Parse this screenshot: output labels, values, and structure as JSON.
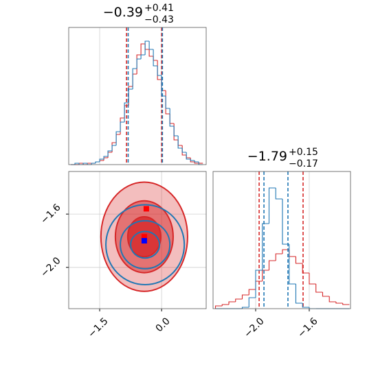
{
  "chart_data": [
    {
      "type": "histogram",
      "title": "−0.39",
      "title_sup": "+0.41",
      "title_sub": "−0.43",
      "xlim": [
        -2.25,
        1.08
      ],
      "ylim": [
        0,
        100
      ],
      "xticks": [
        -1.5,
        0
      ],
      "tick_labels": false,
      "grid": true,
      "bins": [
        -2.2,
        -2.1,
        -2.0,
        -1.9,
        -1.8,
        -1.7,
        -1.6,
        -1.5,
        -1.4,
        -1.3,
        -1.2,
        -1.1,
        -1.0,
        -0.9,
        -0.8,
        -0.7,
        -0.6,
        -0.5,
        -0.4,
        -0.3,
        -0.2,
        -0.1,
        0.0,
        0.1,
        0.2,
        0.3,
        0.4,
        0.5,
        0.6,
        0.7,
        0.8,
        0.9,
        1.0
      ],
      "series": [
        {
          "color": "#d62728",
          "values": [
            0,
            0,
            1,
            0,
            1,
            1,
            2,
            3,
            5,
            9,
            16,
            22,
            34,
            43,
            57,
            66,
            80,
            88,
            84,
            79,
            76,
            62,
            54,
            37,
            30,
            18,
            14,
            7,
            5,
            2,
            1,
            1
          ],
          "quantiles": [
            -0.85,
            -0.0
          ]
        },
        {
          "color": "#1f77b4",
          "values": [
            0,
            1,
            0,
            1,
            0,
            1,
            2,
            4,
            6,
            10,
            14,
            24,
            31,
            45,
            55,
            70,
            77,
            80,
            90,
            84,
            72,
            65,
            50,
            41,
            28,
            21,
            12,
            9,
            4,
            3,
            2,
            0
          ],
          "quantiles": [
            -0.81,
            0.02
          ]
        }
      ]
    },
    {
      "type": "contour",
      "xlim": [
        -2.25,
        1.08
      ],
      "ylim": [
        -2.31,
        -1.28
      ],
      "xticks": [
        {
          "value": -1.5,
          "label": "−1.5"
        },
        {
          "value": 0,
          "label": "0.0"
        }
      ],
      "yticks": [
        {
          "value": -1.6,
          "label": "−1.6"
        },
        {
          "value": -2.0,
          "label": "−2.0"
        }
      ],
      "grid": true,
      "series": [
        {
          "color": "#d62728",
          "filled": true,
          "center_x": -0.42,
          "center_y": -1.77,
          "rx": [
            1.05,
            0.7,
            0.4
          ],
          "ry": [
            0.41,
            0.27,
            0.15
          ],
          "points_x": [
            -0.37,
            -0.42
          ],
          "points_y": [
            -1.56,
            -1.77
          ]
        },
        {
          "color": "#1f77b4",
          "filled": false,
          "center_x": -0.4,
          "center_y": -1.83,
          "rx": [
            0.95,
            0.6,
            0.35
          ],
          "ry": [
            0.3,
            0.18,
            0.1
          ],
          "points_x": [
            -0.42
          ],
          "points_y": [
            -1.8
          ]
        }
      ]
    },
    {
      "type": "histogram",
      "title": "−1.79",
      "title_sup": "+0.15",
      "title_sub": "−0.17",
      "xlim": [
        -2.318,
        -1.292
      ],
      "ylim": [
        0,
        100
      ],
      "xticks": [
        {
          "value": -2.0,
          "label": "−2.0"
        },
        {
          "value": -1.6,
          "label": "−1.6"
        }
      ],
      "tick_labels": true,
      "grid": true,
      "bins": [
        -2.3,
        -2.25,
        -2.2,
        -2.15,
        -2.1,
        -2.05,
        -2.0,
        -1.95,
        -1.9,
        -1.85,
        -1.8,
        -1.75,
        -1.7,
        -1.65,
        -1.6,
        -1.55,
        -1.5,
        -1.45,
        -1.4,
        -1.35,
        -1.3
      ],
      "series": [
        {
          "color": "#d62728",
          "values": [
            2,
            3,
            5,
            7,
            10,
            14,
            20,
            28,
            35,
            40,
            43,
            38,
            33,
            26,
            18,
            12,
            9,
            5,
            4,
            3
          ],
          "quantiles": [
            -1.974,
            -1.646
          ]
        },
        {
          "color": "#1f77b4",
          "values": [
            0,
            0,
            0,
            0,
            1,
            8,
            28,
            62,
            88,
            80,
            47,
            18,
            4,
            1,
            0,
            0,
            0,
            0,
            0,
            0
          ],
          "quantiles": [
            -1.938,
            -1.759
          ]
        }
      ]
    }
  ]
}
